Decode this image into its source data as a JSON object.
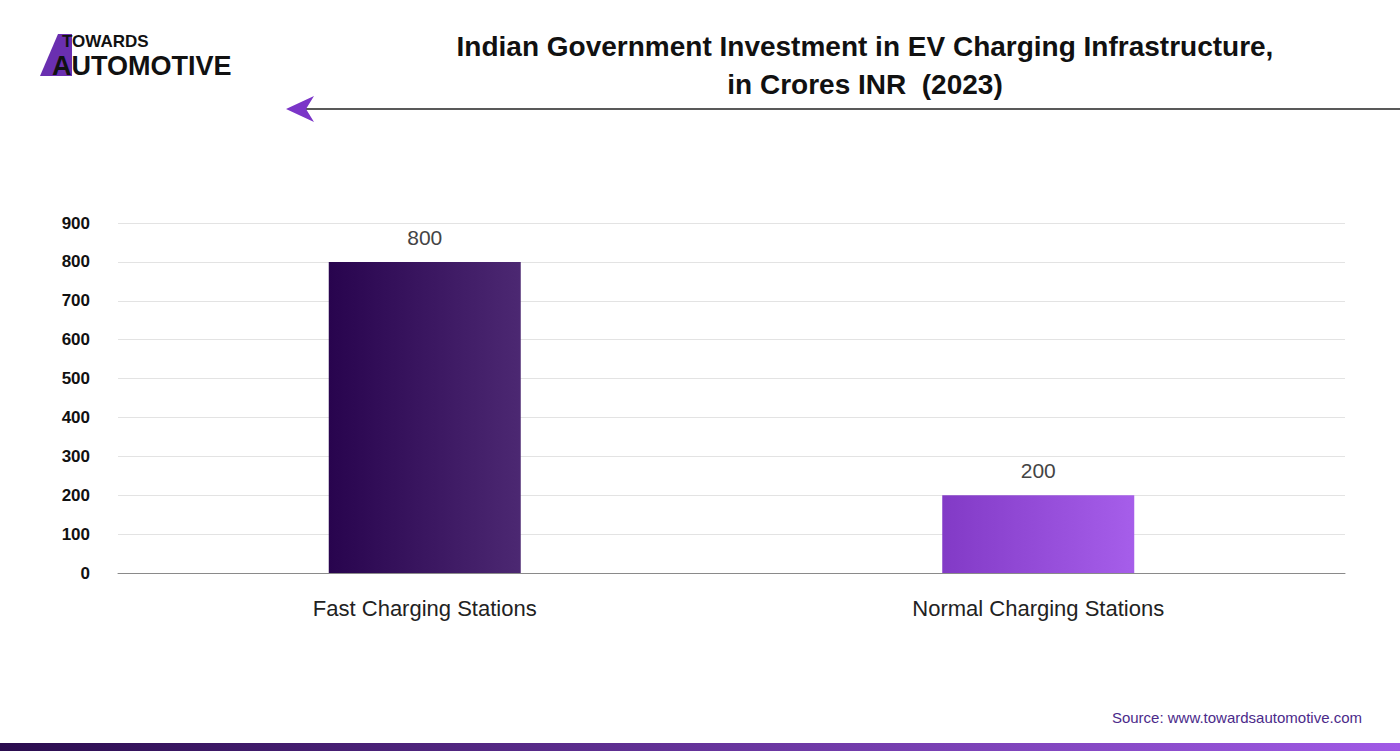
{
  "chart_data": {
    "type": "bar",
    "title": "Indian Government Investment in EV Charging Infrastructure,\nin Crores INR  (2023)",
    "logo": [
      "TOWARDS",
      "AUTOMOTIVE"
    ],
    "source": "Source: www.towardsautomotive.com",
    "categories": [
      "Fast Charging Stations",
      "Normal Charging Stations"
    ],
    "values": [
      800,
      200
    ],
    "colors": [
      "#3a1660",
      "#944cd8"
    ],
    "ylim": [
      0,
      900
    ],
    "yticks": [
      0,
      100,
      200,
      300,
      400,
      500,
      600,
      700,
      800,
      900
    ],
    "grid": true,
    "data_labels": true
  }
}
